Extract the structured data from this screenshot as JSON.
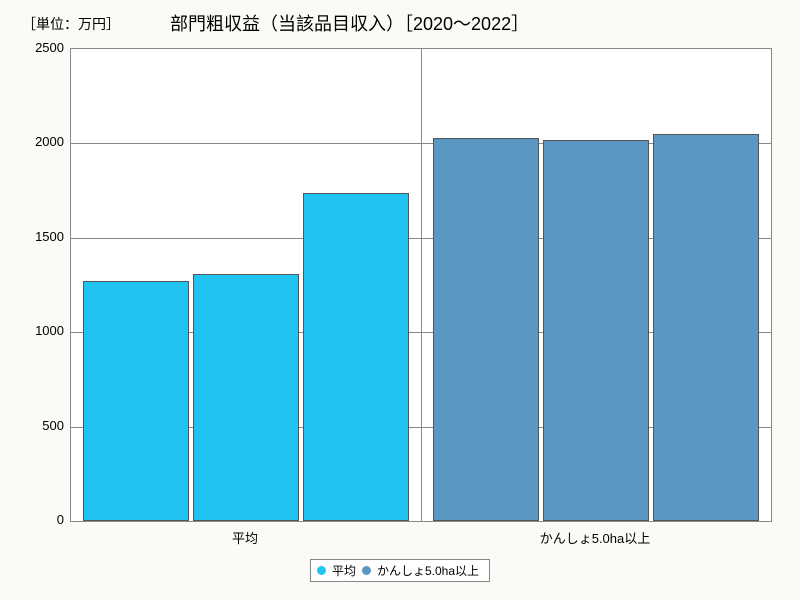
{
  "unit_label": "［単位：万円］",
  "title": "部門粗収益（当該品目収入）［2020～2022］",
  "chart": {
    "type": "bar",
    "background_color": "#ffffff",
    "outer_background": "#fafaf7",
    "border_color": "#888888",
    "ylim": [
      0,
      2500
    ],
    "ytick_step": 500,
    "yticks": [
      0,
      500,
      1000,
      1500,
      2000,
      2500
    ],
    "categories": [
      "平均",
      "かんしょ5.0ha以上"
    ],
    "groups": [
      {
        "name": "平均",
        "color": "#1fc4f0",
        "values": [
          1270,
          1310,
          1740
        ]
      },
      {
        "name": "かんしょ5.0ha以上",
        "color": "#5a97c3",
        "values": [
          2030,
          2020,
          2050
        ]
      }
    ],
    "bar_border_color": "#555555"
  },
  "legend": {
    "items": [
      {
        "label": "平均",
        "color": "#1fc4f0"
      },
      {
        "label": "かんしょ5.0ha以上",
        "color": "#5a97c3"
      }
    ],
    "border_color": "#888888",
    "background": "#ffffff"
  }
}
